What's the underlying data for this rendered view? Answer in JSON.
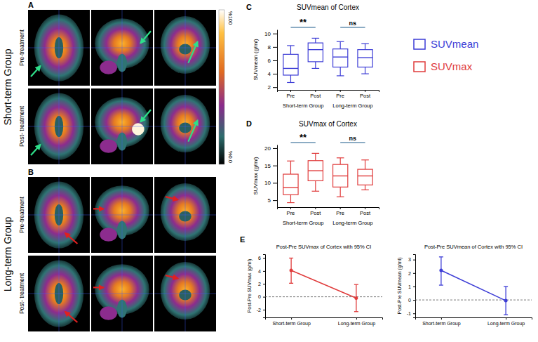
{
  "chart_data": [
    {
      "type": "box",
      "letter": "C",
      "title": "SUVmean of Cortex",
      "y_label": "SUVmean (g/ml)",
      "categories": [
        "Pre",
        "Post",
        "Pre",
        "Post"
      ],
      "groups": [
        "Short-term Group",
        "Long-term Group"
      ],
      "group_index": [
        0,
        0,
        1,
        1
      ],
      "color": "#3d3dd6",
      "boxes": [
        {
          "min": 2.7,
          "q1": 3.8,
          "median": 4.8,
          "q3": 6.9,
          "max": 8.2
        },
        {
          "min": 4.8,
          "q1": 5.8,
          "median": 7.6,
          "q3": 8.6,
          "max": 9.3
        },
        {
          "min": 3.7,
          "q1": 5.0,
          "median": 6.5,
          "q3": 7.7,
          "max": 8.8
        },
        {
          "min": 4.0,
          "q1": 5.0,
          "median": 6.4,
          "q3": 7.6,
          "max": 8.5
        }
      ],
      "ylim": [
        1.6,
        10.6
      ],
      "yticks": [
        2,
        4,
        6,
        8,
        10
      ],
      "annotations": [
        {
          "text": "**",
          "between": [
            0,
            1
          ]
        },
        {
          "text": "ns",
          "between": [
            2,
            3
          ]
        }
      ]
    },
    {
      "type": "box",
      "letter": "D",
      "title": "SUVmax of Cortex",
      "y_label": "SUVmax (g/ml)",
      "categories": [
        "Pre",
        "Post",
        "Pre",
        "Post"
      ],
      "groups": [
        "Short-term Group",
        "Long-term Group"
      ],
      "group_index": [
        0,
        0,
        1,
        1
      ],
      "color": "#e03c3c",
      "boxes": [
        {
          "min": 4.3,
          "q1": 6.6,
          "median": 8.6,
          "q3": 12.5,
          "max": 16.3
        },
        {
          "min": 7.6,
          "q1": 10.6,
          "median": 13.5,
          "q3": 16.4,
          "max": 18.5
        },
        {
          "min": 6.0,
          "q1": 8.8,
          "median": 12.0,
          "q3": 15.3,
          "max": 17.2
        },
        {
          "min": 8.0,
          "q1": 9.4,
          "median": 12.0,
          "q3": 13.9,
          "max": 16.6
        }
      ],
      "ylim": [
        3,
        21
      ],
      "yticks": [
        5,
        10,
        15,
        20
      ],
      "annotations": [
        {
          "text": "**",
          "between": [
            0,
            1
          ]
        },
        {
          "text": "ns",
          "between": [
            2,
            3
          ]
        }
      ]
    },
    {
      "type": "line",
      "title": "Post-Pre SUVmax of Cortex with 95% CI",
      "y_label": "Post-Pre SUVmax (g/ml)",
      "categories": [
        "Short-term Group",
        "Long-term Group"
      ],
      "values": [
        4.1,
        -0.2
      ],
      "ci_low": [
        2.1,
        -2.3
      ],
      "ci_high": [
        6.0,
        1.9
      ],
      "color": "#e03c3c",
      "marker": "circle",
      "ylim": [
        -3.2,
        6.6
      ],
      "yticks": [
        -2,
        0,
        2,
        4,
        6
      ],
      "reference_lines": [
        0
      ]
    },
    {
      "type": "line",
      "title": "Post-Pre SUVmean of Cortex with 95% CI",
      "y_label": "Post-Pre SUVmean (g/ml)",
      "categories": [
        "Short-term Group",
        "Long-term Group"
      ],
      "values": [
        2.2,
        -0.05
      ],
      "ci_low": [
        1.1,
        -1.1
      ],
      "ci_high": [
        3.2,
        1.0
      ],
      "color": "#3d3dd6",
      "marker": "circle",
      "ylim": [
        -1.3,
        3.4
      ],
      "yticks": [
        -1,
        0,
        1,
        2,
        3
      ],
      "reference_lines": [
        0
      ]
    }
  ],
  "figure": {
    "image_panels": [
      {
        "letter": "A",
        "group": "Short-term Group",
        "rows": [
          "Pre-treatment",
          "Post- treatment"
        ]
      },
      {
        "letter": "B",
        "group": "Long-term Group",
        "rows": [
          "Pre-treatment",
          "Post- treatment"
        ]
      }
    ],
    "colorbar": {
      "top_label": "%100",
      "bottom_label": "%0.0"
    },
    "legend_items": [
      {
        "label": "SUVmean",
        "color": "#3d3dd6"
      },
      {
        "label": "SUVmax",
        "color": "#e03c3c"
      }
    ],
    "panel_e_letter": "E"
  }
}
